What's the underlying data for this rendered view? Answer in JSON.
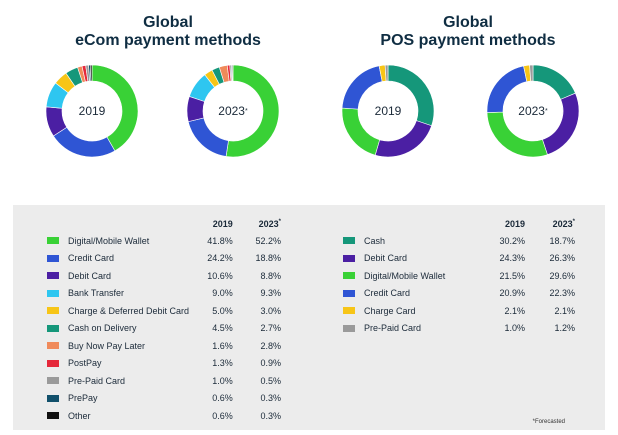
{
  "ecom": {
    "title_line1": "Global",
    "title_line2": "eCom payment methods",
    "year_a": "2019",
    "year_b": "2023",
    "year_b_mark": "*",
    "col_a": "2019",
    "col_b": "2023",
    "col_b_mark": "*"
  },
  "pos": {
    "title_line1": "Global",
    "title_line2": "POS payment methods",
    "year_a": "2019",
    "year_b": "2023",
    "year_b_mark": "*",
    "col_a": "2019",
    "col_b": "2023",
    "col_b_mark": "*"
  },
  "footnote": "*Forecasted",
  "chart_data": [
    {
      "type": "pie",
      "donut": true,
      "title": "Global eCom payment methods",
      "categories": [
        "Digital/Mobile Wallet",
        "Credit Card",
        "Debit Card",
        "Bank Transfer",
        "Charge & Deferred Debit Card",
        "Cash on Delivery",
        "Buy Now Pay Later",
        "PostPay",
        "Pre-Paid Card",
        "PrePay",
        "Other"
      ],
      "colors": [
        "#39d136",
        "#2f55d4",
        "#4b1fa3",
        "#2ec6f0",
        "#f7c517",
        "#15977a",
        "#f08a5a",
        "#e5283a",
        "#9a9a9a",
        "#11506b",
        "#111111"
      ],
      "series": [
        {
          "name": "2019",
          "label": "2019",
          "values": [
            41.8,
            24.2,
            10.6,
            9.0,
            5.0,
            4.5,
            1.6,
            1.3,
            1.0,
            0.6,
            0.6
          ]
        },
        {
          "name": "2023",
          "label": "2023",
          "values": [
            52.2,
            18.8,
            8.8,
            9.3,
            3.0,
            2.7,
            2.8,
            0.9,
            0.5,
            0.3,
            0.3
          ]
        }
      ]
    },
    {
      "type": "pie",
      "donut": true,
      "title": "Global POS payment methods",
      "categories": [
        "Cash",
        "Debit Card",
        "Digital/Mobile Wallet",
        "Credit Card",
        "Charge Card",
        "Pre-Paid Card"
      ],
      "colors": [
        "#15977a",
        "#4b1fa3",
        "#39d136",
        "#2f55d4",
        "#f7c517",
        "#9a9a9a"
      ],
      "series": [
        {
          "name": "2019",
          "label": "2019",
          "values": [
            30.2,
            24.3,
            21.5,
            20.9,
            2.1,
            1.0
          ]
        },
        {
          "name": "2023",
          "label": "2023",
          "values": [
            18.7,
            26.3,
            29.6,
            22.3,
            2.1,
            1.2
          ]
        }
      ]
    }
  ],
  "ecom_table": [
    {
      "label": "Digital/Mobile Wallet",
      "a": "41.8%",
      "b": "52.2%",
      "color": "#39d136"
    },
    {
      "label": "Credit Card",
      "a": "24.2%",
      "b": "18.8%",
      "color": "#2f55d4"
    },
    {
      "label": "Debit Card",
      "a": "10.6%",
      "b": "8.8%",
      "color": "#4b1fa3"
    },
    {
      "label": "Bank Transfer",
      "a": "9.0%",
      "b": "9.3%",
      "color": "#2ec6f0"
    },
    {
      "label": "Charge & Deferred Debit Card",
      "a": "5.0%",
      "b": "3.0%",
      "color": "#f7c517"
    },
    {
      "label": "Cash on Delivery",
      "a": "4.5%",
      "b": "2.7%",
      "color": "#15977a"
    },
    {
      "label": "Buy Now Pay Later",
      "a": "1.6%",
      "b": "2.8%",
      "color": "#f08a5a"
    },
    {
      "label": "PostPay",
      "a": "1.3%",
      "b": "0.9%",
      "color": "#e5283a"
    },
    {
      "label": "Pre-Paid Card",
      "a": "1.0%",
      "b": "0.5%",
      "color": "#9a9a9a"
    },
    {
      "label": "PrePay",
      "a": "0.6%",
      "b": "0.3%",
      "color": "#11506b"
    },
    {
      "label": "Other",
      "a": "0.6%",
      "b": "0.3%",
      "color": "#111111"
    }
  ],
  "pos_table": [
    {
      "label": "Cash",
      "a": "30.2%",
      "b": "18.7%",
      "color": "#15977a"
    },
    {
      "label": "Debit Card",
      "a": "24.3%",
      "b": "26.3%",
      "color": "#4b1fa3"
    },
    {
      "label": "Digital/Mobile Wallet",
      "a": "21.5%",
      "b": "29.6%",
      "color": "#39d136"
    },
    {
      "label": "Credit Card",
      "a": "20.9%",
      "b": "22.3%",
      "color": "#2f55d4"
    },
    {
      "label": "Charge Card",
      "a": "2.1%",
      "b": "2.1%",
      "color": "#f7c517"
    },
    {
      "label": "Pre-Paid Card",
      "a": "1.0%",
      "b": "1.2%",
      "color": "#9a9a9a"
    }
  ]
}
